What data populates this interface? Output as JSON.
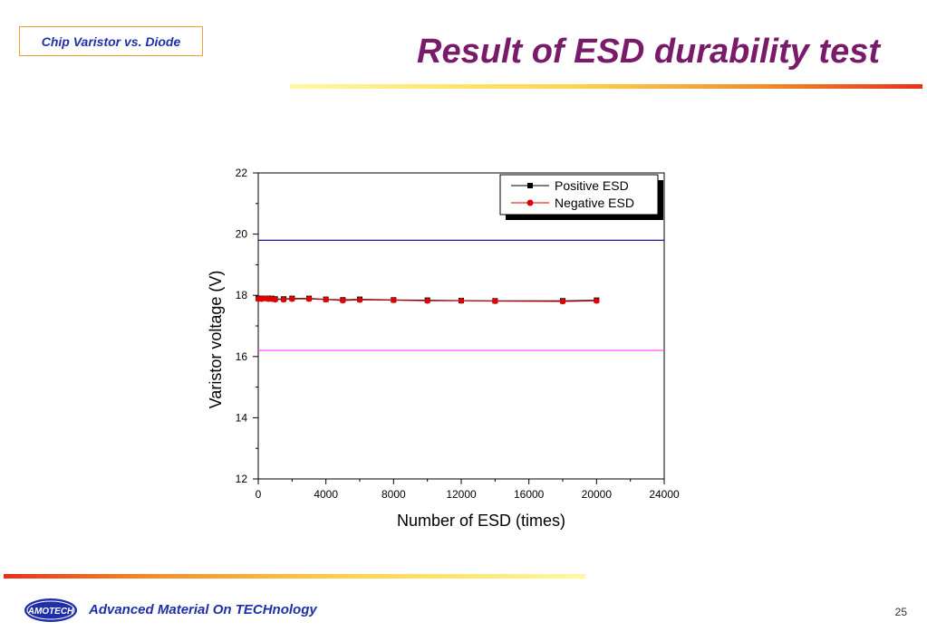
{
  "header": {
    "tag_label": "Chip Varistor vs. Diode",
    "title": "Result of ESD durability test"
  },
  "footer": {
    "logo_text": "AMOTECH",
    "company": "Advanced Material On TECHnology",
    "page_number": "25"
  },
  "colors": {
    "title": "#7a1a6a",
    "brand_blue": "#1f2fa8",
    "positive_series": "#000000",
    "negative_series": "#e00000",
    "upper_limit": "#1a1a80",
    "lower_limit": "#ff40ff"
  },
  "chart_data": {
    "type": "line",
    "xlabel": "Number of ESD (times)",
    "ylabel": "Varistor voltage (V)",
    "xlim": [
      0,
      24000
    ],
    "ylim": [
      12,
      22
    ],
    "xticks": [
      0,
      4000,
      8000,
      12000,
      16000,
      20000,
      24000
    ],
    "yticks": [
      12,
      14,
      16,
      18,
      20,
      22
    ],
    "grid": false,
    "legend_position": "top-right",
    "reference_lines": [
      {
        "y": 19.8,
        "color": "#1a1a80"
      },
      {
        "y": 16.2,
        "color": "#ff40ff"
      }
    ],
    "series": [
      {
        "name": "Positive ESD",
        "marker": "square",
        "color": "#000000",
        "x": [
          0,
          200,
          400,
          600,
          800,
          1000,
          1500,
          2000,
          3000,
          4000,
          5000,
          6000,
          8000,
          10000,
          12000,
          14000,
          18000,
          20000
        ],
        "y": [
          17.9,
          17.9,
          17.9,
          17.9,
          17.9,
          17.88,
          17.88,
          17.9,
          17.9,
          17.87,
          17.85,
          17.87,
          17.85,
          17.84,
          17.83,
          17.82,
          17.82,
          17.84
        ]
      },
      {
        "name": "Negative ESD",
        "marker": "circle",
        "color": "#e00000",
        "x": [
          0,
          200,
          400,
          600,
          800,
          1000,
          1500,
          2000,
          3000,
          4000,
          5000,
          6000,
          8000,
          10000,
          12000,
          14000,
          18000,
          20000
        ],
        "y": [
          17.88,
          17.88,
          17.9,
          17.88,
          17.88,
          17.86,
          17.86,
          17.88,
          17.88,
          17.86,
          17.83,
          17.85,
          17.84,
          17.82,
          17.82,
          17.81,
          17.8,
          17.82
        ]
      }
    ]
  }
}
